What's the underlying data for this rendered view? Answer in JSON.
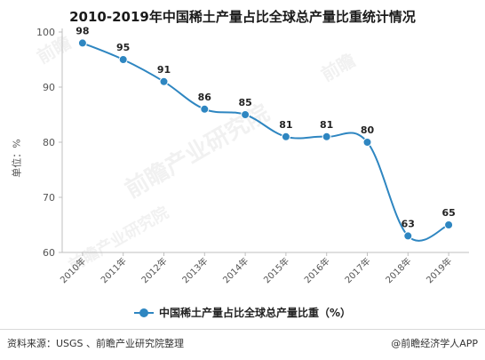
{
  "chart_data": {
    "type": "line",
    "title": "2010-2019年中国稀土产量占比全球总产量比重统计情况",
    "ylabel": "单位：%",
    "xlabel": "",
    "categories": [
      "2010年",
      "2011年",
      "2012年",
      "2013年",
      "2014年",
      "2015年",
      "2016年",
      "2017年",
      "2018年",
      "2019年"
    ],
    "series": [
      {
        "name": "中国稀土产量占比全球总产量比重（%）",
        "values": [
          98,
          95,
          91,
          86,
          85,
          81,
          81,
          80,
          63,
          65
        ]
      }
    ],
    "ylim": [
      60,
      100
    ],
    "yticks": [
      "60",
      "70",
      "80",
      "90",
      "100"
    ],
    "grid": false,
    "legend": "bottom",
    "color": "#2e86c1"
  },
  "watermarks": [
    "前瞻",
    "前瞻产业研究院",
    "前瞻",
    "前瞻产业研究院"
  ],
  "footer": {
    "source": "资料来源：USGS 、前瞻产业研究院整理",
    "brand": "@前瞻经济学人APP"
  }
}
